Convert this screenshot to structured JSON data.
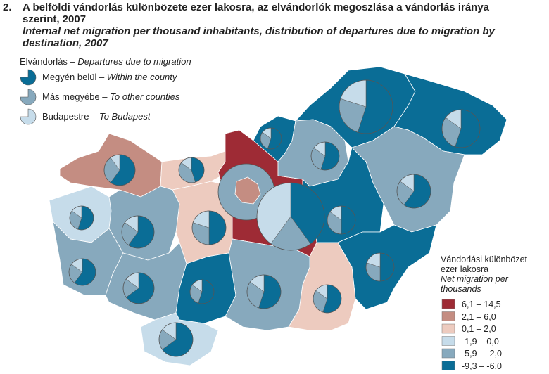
{
  "header": {
    "number": "2.",
    "title_hu": "A belföldi vándorlás különbözete ezer lakosra, az elvándorlók megoszlása a vándorlás iránya szerint, 2007",
    "title_en": "Internal net migration per thousand inhabitants, distribution of departures due to migration by destination, 2007"
  },
  "pie_legend": {
    "title_hu": "Elvándorlás –",
    "title_en": "Departures due to migration",
    "items": [
      {
        "hu": "Megyén belül –",
        "en": "Within the county",
        "color": "#0a6d96"
      },
      {
        "hu": "Más megyébe –",
        "en": "To other counties",
        "color": "#87a9bd"
      },
      {
        "hu": "Budapestre –",
        "en": "To Budapest",
        "color": "#c6dcea"
      }
    ]
  },
  "class_legend": {
    "title_hu": "Vándorlási különbözet ezer lakosra",
    "title_en": "Net migration per thousands",
    "classes": [
      {
        "label": "6,1 – 14,5",
        "color": "#9e2b35"
      },
      {
        "label": "2,1 – 6,0",
        "color": "#c48d82"
      },
      {
        "label": "0,1 – 2,0",
        "color": "#edcbbf"
      },
      {
        "label": "-1,9 – 0,0",
        "color": "#c6dcea"
      },
      {
        "label": "-5,9 – -2,0",
        "color": "#87a9bd"
      },
      {
        "label": "-9,3 – -6,0",
        "color": "#0a6d96"
      }
    ]
  },
  "counties": [
    {
      "class": 1,
      "shares": [
        60,
        30,
        10
      ]
    },
    {
      "class": 2,
      "shares": [
        45,
        40,
        15
      ]
    },
    {
      "class": 0,
      "shares": [
        40,
        20,
        40
      ]
    },
    {
      "class": 5,
      "shares": [
        55,
        30,
        15
      ]
    },
    {
      "class": 5,
      "shares": [
        55,
        25,
        20
      ]
    },
    {
      "class": 5,
      "shares": [
        55,
        30,
        15
      ]
    },
    {
      "class": 4,
      "shares": [
        55,
        30,
        15
      ]
    },
    {
      "class": 4,
      "shares": [
        60,
        25,
        15
      ]
    },
    {
      "class": 5,
      "shares": [
        50,
        35,
        15
      ]
    },
    {
      "class": 5,
      "shares": [
        50,
        30,
        20
      ]
    },
    {
      "class": 2,
      "shares": [
        55,
        30,
        15
      ]
    },
    {
      "class": 4,
      "shares": [
        55,
        30,
        15
      ]
    },
    {
      "class": 2,
      "shares": [
        50,
        30,
        20
      ]
    },
    {
      "class": 4,
      "shares": [
        60,
        25,
        15
      ]
    },
    {
      "class": 3,
      "shares": [
        55,
        30,
        15
      ]
    },
    {
      "class": 4,
      "shares": [
        60,
        25,
        15
      ]
    },
    {
      "class": 4,
      "shares": [
        65,
        20,
        15
      ]
    },
    {
      "class": 5,
      "shares": [
        55,
        30,
        15
      ]
    },
    {
      "class": 3,
      "shares": [
        65,
        20,
        15
      ]
    }
  ],
  "budapest": {
    "class": 1
  }
}
